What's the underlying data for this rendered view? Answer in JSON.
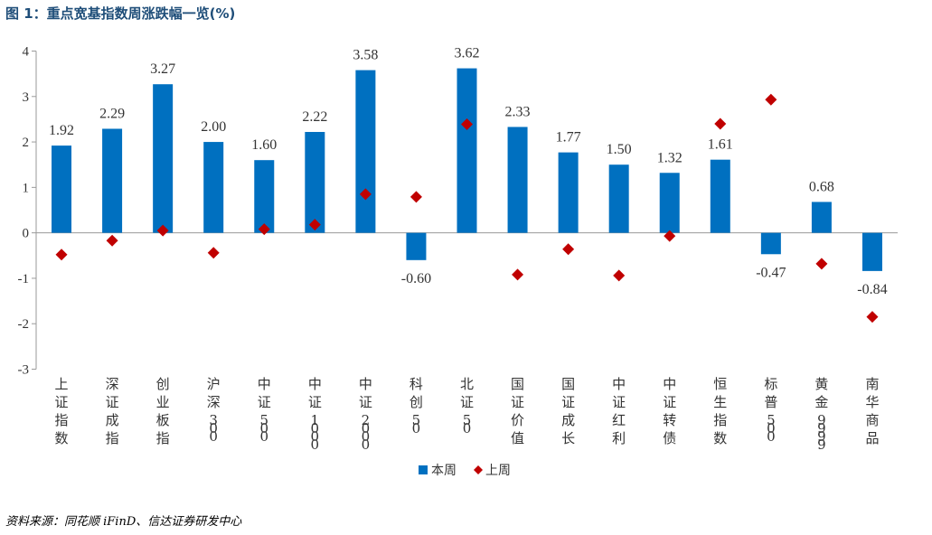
{
  "header": {
    "title": "图 1：重点宽基指数周涨跌幅一览(%)"
  },
  "footer": {
    "source": "资料来源：同花顺 iFinD、信达证券研发中心"
  },
  "chart_data": {
    "type": "bar",
    "title": "重点宽基指数周涨跌幅一览(%)",
    "categories": [
      "上证指数",
      "深证成指",
      "创业板指",
      "沪深300",
      "中证500",
      "中证1000",
      "中证2000",
      "科创50",
      "北证50",
      "国证价值",
      "国证成长",
      "中证红利",
      "中证转债",
      "恒生指数",
      "标普500",
      "黄金9999",
      "南华商品"
    ],
    "series": [
      {
        "name": "本周",
        "type": "bar",
        "color": "#0070c0",
        "values": [
          1.92,
          2.29,
          3.27,
          2.0,
          1.6,
          2.22,
          3.58,
          -0.6,
          3.62,
          2.33,
          1.77,
          1.5,
          1.32,
          1.61,
          -0.47,
          0.68,
          -0.84
        ],
        "labels": [
          "1.92",
          "2.29",
          "3.27",
          "2.00",
          "1.60",
          "2.22",
          "3.58",
          "-0.60",
          "3.62",
          "2.33",
          "1.77",
          "1.50",
          "1.32",
          "1.61",
          "-0.47",
          "0.68",
          "-0.84"
        ]
      },
      {
        "name": "上周",
        "type": "scatter",
        "marker": "diamond",
        "color": "#c00000",
        "values": [
          -0.48,
          -0.17,
          0.05,
          -0.44,
          0.08,
          0.18,
          0.85,
          0.79,
          2.39,
          -0.92,
          -0.36,
          -0.94,
          -0.07,
          2.4,
          2.93,
          -0.68,
          -1.85
        ]
      }
    ],
    "ylim": [
      -3,
      4
    ],
    "yticks": [
      "4",
      "3",
      "2",
      "1",
      "0",
      "-1",
      "-2",
      "-3"
    ],
    "ytick_values": [
      4,
      3,
      2,
      1,
      0,
      -1,
      -2,
      -3
    ],
    "xlabel": "",
    "ylabel": "",
    "legend": "bottom-center",
    "grid": false
  }
}
